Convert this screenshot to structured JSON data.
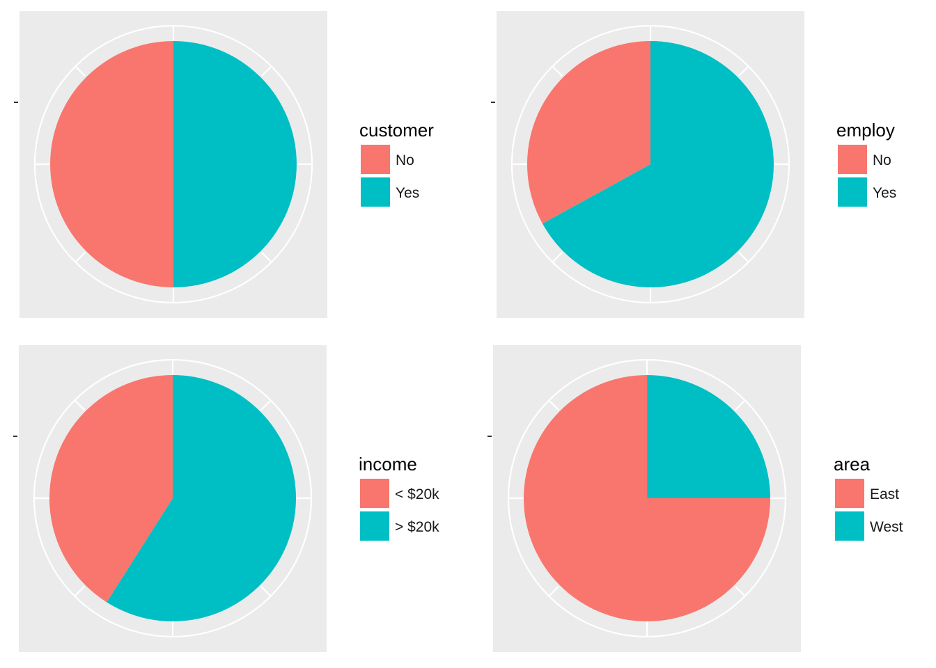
{
  "colors": {
    "first": "#F8766D",
    "second": "#00BFC4",
    "panel": "#EBEBEB",
    "grid": "#FFFFFF",
    "tick": "#333333"
  },
  "chart_data": [
    {
      "type": "pie",
      "legend_title": "customer",
      "legend_placement": "right",
      "grid": true,
      "categories": [
        "No",
        "Yes"
      ],
      "values": [
        50,
        50
      ]
    },
    {
      "type": "pie",
      "legend_title": "employ",
      "legend_placement": "right",
      "grid": true,
      "categories": [
        "No",
        "Yes"
      ],
      "values": [
        33,
        67
      ]
    },
    {
      "type": "pie",
      "legend_title": "income",
      "legend_placement": "right",
      "grid": true,
      "categories": [
        "< $20k",
        "> $20k"
      ],
      "values": [
        41,
        59
      ]
    },
    {
      "type": "pie",
      "legend_title": "area",
      "legend_placement": "right",
      "grid": true,
      "categories": [
        "East",
        "West"
      ],
      "values": [
        75,
        25
      ]
    }
  ]
}
